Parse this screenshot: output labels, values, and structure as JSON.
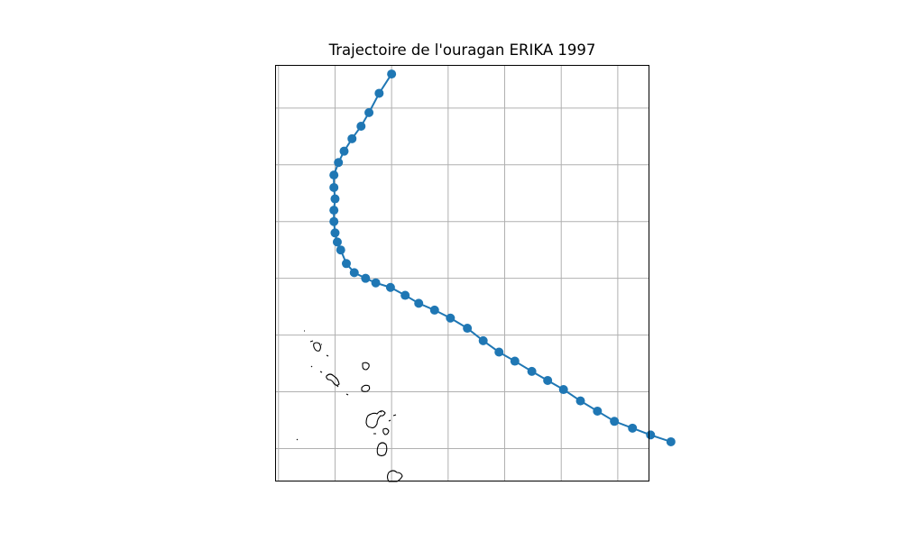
{
  "chart_data": {
    "type": "line",
    "title": "Trajectoire de l'ouragan ERIKA 1997",
    "xlabel": "",
    "ylabel": "",
    "grid": true,
    "tick_labels_visible": false,
    "xlim": [
      -65.3,
      -32.2
    ],
    "ylim": [
      12.1,
      48.8
    ],
    "map": "coastlines",
    "series": [
      {
        "color": "#1f77b4",
        "marker": "circle",
        "x": [
          -30.3,
          -32.1,
          -33.7,
          -35.3,
          -36.8,
          -38.3,
          -39.8,
          -41.2,
          -42.6,
          -44.1,
          -45.5,
          -46.9,
          -48.3,
          -49.8,
          -51.2,
          -52.6,
          -53.8,
          -55.1,
          -56.4,
          -57.3,
          -58.3,
          -59.0,
          -59.5,
          -59.8,
          -60.0,
          -60.1,
          -60.1,
          -60.0,
          -60.1,
          -60.1,
          -59.7,
          -59.2,
          -58.5,
          -57.7,
          -57.0,
          -56.1,
          -55.0
        ],
        "y": [
          15.6,
          16.2,
          16.8,
          17.4,
          18.3,
          19.2,
          20.2,
          21.0,
          21.8,
          22.7,
          23.5,
          24.5,
          25.6,
          26.5,
          27.2,
          27.8,
          28.5,
          29.2,
          29.6,
          30.0,
          30.5,
          31.3,
          32.5,
          33.2,
          34.0,
          35.0,
          36.0,
          37.0,
          38.0,
          39.1,
          40.2,
          41.2,
          42.3,
          43.4,
          44.6,
          46.3,
          48.0
        ]
      }
    ]
  },
  "map": {
    "coast_color": "#000000"
  }
}
